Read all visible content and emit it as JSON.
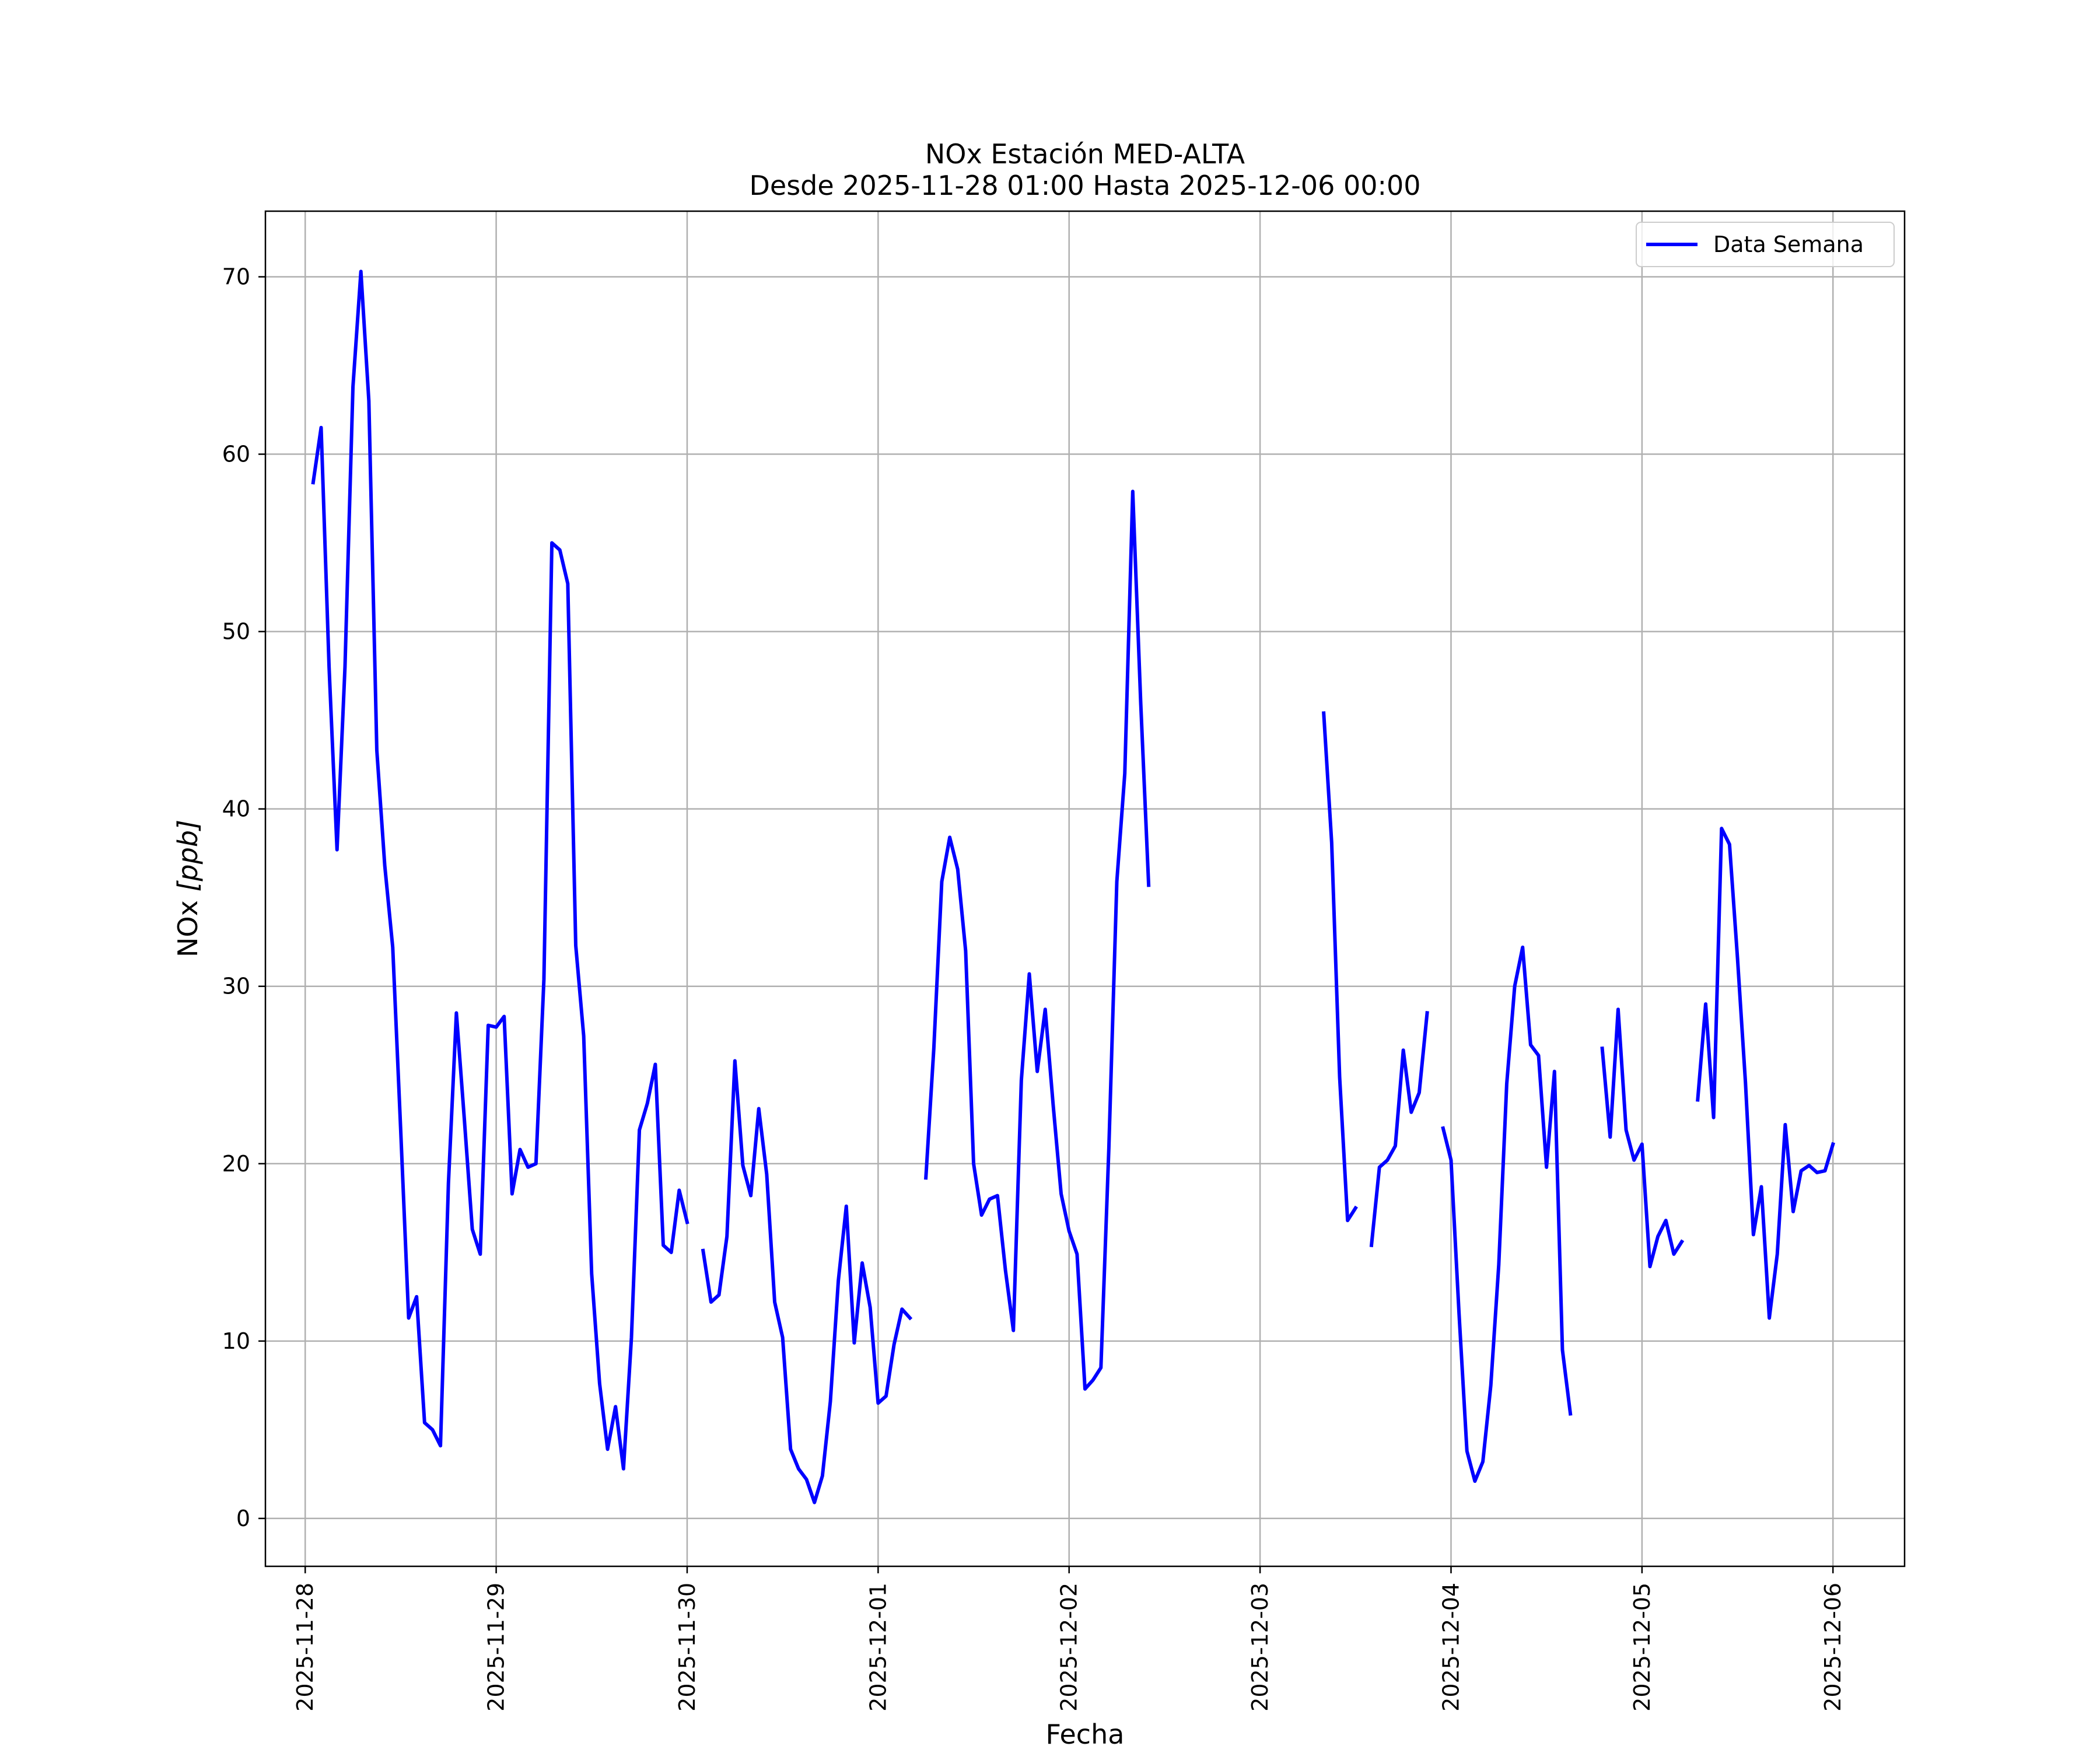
{
  "chart_data": {
    "type": "line",
    "title": "NOx Estación MED-ALTA",
    "subtitle": "Desde 2025-11-28 01:00 Hasta 2025-12-06 00:00",
    "xlabel": "Fecha",
    "ylabel_main": "NOx ",
    "ylabel_unit": "[ppb]",
    "x_range": [
      "2025-11-27 19:00",
      "2025-12-06 09:00"
    ],
    "ylim": [
      -2.7,
      73.7
    ],
    "y_ticks": [
      "0",
      "10",
      "20",
      "30",
      "40",
      "50",
      "60",
      "70"
    ],
    "x_ticks": [
      "2025-11-28",
      "2025-11-29",
      "2025-11-30",
      "2025-12-01",
      "2025-12-02",
      "2025-12-03",
      "2025-12-04",
      "2025-12-05",
      "2025-12-06"
    ],
    "grid": true,
    "legend_position": "top-right",
    "colors": {
      "line": "#0000ff",
      "grid": "#b0b0b0",
      "axes": "#000000"
    },
    "series": [
      {
        "name": "Data Semana",
        "segments": [
          [
            [
              "2025-11-28 01:00",
              58.4
            ],
            [
              "2025-11-28 02:00",
              61.5
            ],
            [
              "2025-11-28 03:00",
              48.0
            ],
            [
              "2025-11-28 04:00",
              37.7
            ],
            [
              "2025-11-28 05:00",
              48.0
            ],
            [
              "2025-11-28 06:00",
              63.8
            ],
            [
              "2025-11-28 07:00",
              70.3
            ],
            [
              "2025-11-28 08:00",
              63.0
            ],
            [
              "2025-11-28 09:00",
              43.3
            ],
            [
              "2025-11-28 10:00",
              36.8
            ],
            [
              "2025-11-28 11:00",
              32.2
            ],
            [
              "2025-11-28 12:00",
              21.9
            ],
            [
              "2025-11-28 13:00",
              11.3
            ],
            [
              "2025-11-28 14:00",
              12.5
            ],
            [
              "2025-11-28 15:00",
              5.4
            ],
            [
              "2025-11-28 16:00",
              5.0
            ],
            [
              "2025-11-28 17:00",
              4.1
            ],
            [
              "2025-11-28 18:00",
              18.9
            ],
            [
              "2025-11-28 19:00",
              28.5
            ],
            [
              "2025-11-28 20:00",
              22.5
            ],
            [
              "2025-11-28 21:00",
              16.3
            ],
            [
              "2025-11-28 22:00",
              14.9
            ],
            [
              "2025-11-28 23:00",
              27.8
            ],
            [
              "2025-11-29 00:00",
              27.7
            ],
            [
              "2025-11-29 01:00",
              28.3
            ],
            [
              "2025-11-29 02:00",
              18.3
            ],
            [
              "2025-11-29 03:00",
              20.8
            ],
            [
              "2025-11-29 04:00",
              19.8
            ],
            [
              "2025-11-29 05:00",
              20.0
            ],
            [
              "2025-11-29 06:00",
              30.4
            ],
            [
              "2025-11-29 07:00",
              55.0
            ],
            [
              "2025-11-29 08:00",
              54.6
            ],
            [
              "2025-11-29 09:00",
              52.7
            ],
            [
              "2025-11-29 10:00",
              32.3
            ],
            [
              "2025-11-29 11:00",
              27.2
            ],
            [
              "2025-11-29 12:00",
              13.8
            ],
            [
              "2025-11-29 13:00",
              7.6
            ],
            [
              "2025-11-29 14:00",
              3.9
            ],
            [
              "2025-11-29 15:00",
              6.3
            ],
            [
              "2025-11-29 16:00",
              2.8
            ],
            [
              "2025-11-29 17:00",
              10.2
            ],
            [
              "2025-11-29 18:00",
              21.9
            ],
            [
              "2025-11-29 19:00",
              23.4
            ],
            [
              "2025-11-29 20:00",
              25.6
            ],
            [
              "2025-11-29 21:00",
              15.4
            ],
            [
              "2025-11-29 22:00",
              15.0
            ],
            [
              "2025-11-29 23:00",
              18.5
            ],
            [
              "2025-11-30 00:00",
              16.7
            ]
          ],
          [
            [
              "2025-11-30 02:00",
              15.1
            ],
            [
              "2025-11-30 03:00",
              12.2
            ],
            [
              "2025-11-30 04:00",
              12.6
            ],
            [
              "2025-11-30 05:00",
              15.9
            ],
            [
              "2025-11-30 06:00",
              25.8
            ],
            [
              "2025-11-30 07:00",
              19.9
            ],
            [
              "2025-11-30 08:00",
              18.2
            ],
            [
              "2025-11-30 09:00",
              23.1
            ],
            [
              "2025-11-30 10:00",
              19.4
            ],
            [
              "2025-11-30 11:00",
              12.2
            ],
            [
              "2025-11-30 12:00",
              10.2
            ],
            [
              "2025-11-30 13:00",
              3.9
            ],
            [
              "2025-11-30 14:00",
              2.8
            ],
            [
              "2025-11-30 15:00",
              2.2
            ],
            [
              "2025-11-30 16:00",
              0.9
            ],
            [
              "2025-11-30 17:00",
              2.4
            ],
            [
              "2025-11-30 18:00",
              6.6
            ],
            [
              "2025-11-30 19:00",
              13.4
            ],
            [
              "2025-11-30 20:00",
              17.6
            ],
            [
              "2025-11-30 21:00",
              9.9
            ],
            [
              "2025-11-30 22:00",
              14.4
            ],
            [
              "2025-11-30 23:00",
              11.9
            ],
            [
              "2025-12-01 00:00",
              6.5
            ],
            [
              "2025-12-01 01:00",
              6.9
            ],
            [
              "2025-12-01 02:00",
              9.8
            ],
            [
              "2025-12-01 03:00",
              11.8
            ],
            [
              "2025-12-01 04:00",
              11.3
            ]
          ],
          [
            [
              "2025-12-01 06:00",
              19.2
            ],
            [
              "2025-12-01 07:00",
              26.5
            ],
            [
              "2025-12-01 08:00",
              35.9
            ],
            [
              "2025-12-01 09:00",
              38.4
            ],
            [
              "2025-12-01 10:00",
              36.6
            ],
            [
              "2025-12-01 11:00",
              32.0
            ],
            [
              "2025-12-01 12:00",
              20.0
            ],
            [
              "2025-12-01 13:00",
              17.1
            ],
            [
              "2025-12-01 14:00",
              18.0
            ],
            [
              "2025-12-01 15:00",
              18.2
            ],
            [
              "2025-12-01 16:00",
              14.0
            ],
            [
              "2025-12-01 17:00",
              10.6
            ],
            [
              "2025-12-01 18:00",
              24.7
            ],
            [
              "2025-12-01 19:00",
              30.7
            ],
            [
              "2025-12-01 20:00",
              25.2
            ],
            [
              "2025-12-01 21:00",
              28.7
            ],
            [
              "2025-12-01 22:00",
              23.3
            ],
            [
              "2025-12-01 23:00",
              18.3
            ],
            [
              "2025-12-02 00:00",
              16.2
            ],
            [
              "2025-12-02 01:00",
              14.9
            ],
            [
              "2025-12-02 02:00",
              7.3
            ],
            [
              "2025-12-02 03:00",
              7.8
            ],
            [
              "2025-12-02 04:00",
              8.5
            ],
            [
              "2025-12-02 05:00",
              20.9
            ],
            [
              "2025-12-02 06:00",
              35.9
            ],
            [
              "2025-12-02 07:00",
              42.0
            ],
            [
              "2025-12-02 08:00",
              57.9
            ],
            [
              "2025-12-02 09:00",
              46.0
            ],
            [
              "2025-12-02 10:00",
              35.7
            ]
          ],
          [
            [
              "2025-12-03 08:00",
              45.4
            ],
            [
              "2025-12-03 09:00",
              38.1
            ],
            [
              "2025-12-03 10:00",
              24.9
            ],
            [
              "2025-12-03 11:00",
              16.8
            ],
            [
              "2025-12-03 12:00",
              17.5
            ]
          ],
          [
            [
              "2025-12-03 14:00",
              15.4
            ],
            [
              "2025-12-03 15:00",
              19.8
            ],
            [
              "2025-12-03 16:00",
              20.2
            ],
            [
              "2025-12-03 17:00",
              21.0
            ],
            [
              "2025-12-03 18:00",
              26.4
            ],
            [
              "2025-12-03 19:00",
              22.9
            ],
            [
              "2025-12-03 20:00",
              24.0
            ],
            [
              "2025-12-03 21:00",
              28.5
            ]
          ],
          [
            [
              "2025-12-03 23:00",
              22.0
            ],
            [
              "2025-12-04 00:00",
              20.2
            ],
            [
              "2025-12-04 01:00",
              11.6
            ],
            [
              "2025-12-04 02:00",
              3.8
            ],
            [
              "2025-12-04 03:00",
              2.1
            ],
            [
              "2025-12-04 04:00",
              3.2
            ],
            [
              "2025-12-04 05:00",
              7.5
            ],
            [
              "2025-12-04 06:00",
              14.3
            ],
            [
              "2025-12-04 07:00",
              24.5
            ],
            [
              "2025-12-04 08:00",
              30.0
            ],
            [
              "2025-12-04 09:00",
              32.2
            ],
            [
              "2025-12-04 10:00",
              26.7
            ],
            [
              "2025-12-04 11:00",
              26.1
            ],
            [
              "2025-12-04 12:00",
              19.8
            ],
            [
              "2025-12-04 13:00",
              25.2
            ],
            [
              "2025-12-04 14:00",
              9.5
            ],
            [
              "2025-12-04 15:00",
              5.9
            ]
          ],
          [
            [
              "2025-12-04 19:00",
              26.5
            ],
            [
              "2025-12-04 20:00",
              21.5
            ],
            [
              "2025-12-04 21:00",
              28.7
            ],
            [
              "2025-12-04 22:00",
              21.9
            ],
            [
              "2025-12-04 23:00",
              20.2
            ],
            [
              "2025-12-05 00:00",
              21.1
            ],
            [
              "2025-12-05 01:00",
              14.2
            ],
            [
              "2025-12-05 02:00",
              15.9
            ],
            [
              "2025-12-05 03:00",
              16.8
            ],
            [
              "2025-12-05 04:00",
              14.9
            ],
            [
              "2025-12-05 05:00",
              15.6
            ]
          ],
          [
            [
              "2025-12-05 07:00",
              23.6
            ],
            [
              "2025-12-05 08:00",
              29.0
            ],
            [
              "2025-12-05 09:00",
              22.6
            ],
            [
              "2025-12-05 10:00",
              38.9
            ],
            [
              "2025-12-05 11:00",
              38.0
            ],
            [
              "2025-12-05 12:00",
              31.6
            ],
            [
              "2025-12-05 13:00",
              24.6
            ],
            [
              "2025-12-05 14:00",
              16.0
            ],
            [
              "2025-12-05 15:00",
              18.7
            ],
            [
              "2025-12-05 16:00",
              11.3
            ],
            [
              "2025-12-05 17:00",
              14.9
            ],
            [
              "2025-12-05 18:00",
              22.2
            ],
            [
              "2025-12-05 19:00",
              17.3
            ],
            [
              "2025-12-05 20:00",
              19.6
            ],
            [
              "2025-12-05 21:00",
              19.9
            ],
            [
              "2025-12-05 22:00",
              19.5
            ],
            [
              "2025-12-05 23:00",
              19.6
            ],
            [
              "2025-12-06 00:00",
              21.1
            ]
          ]
        ]
      }
    ]
  }
}
